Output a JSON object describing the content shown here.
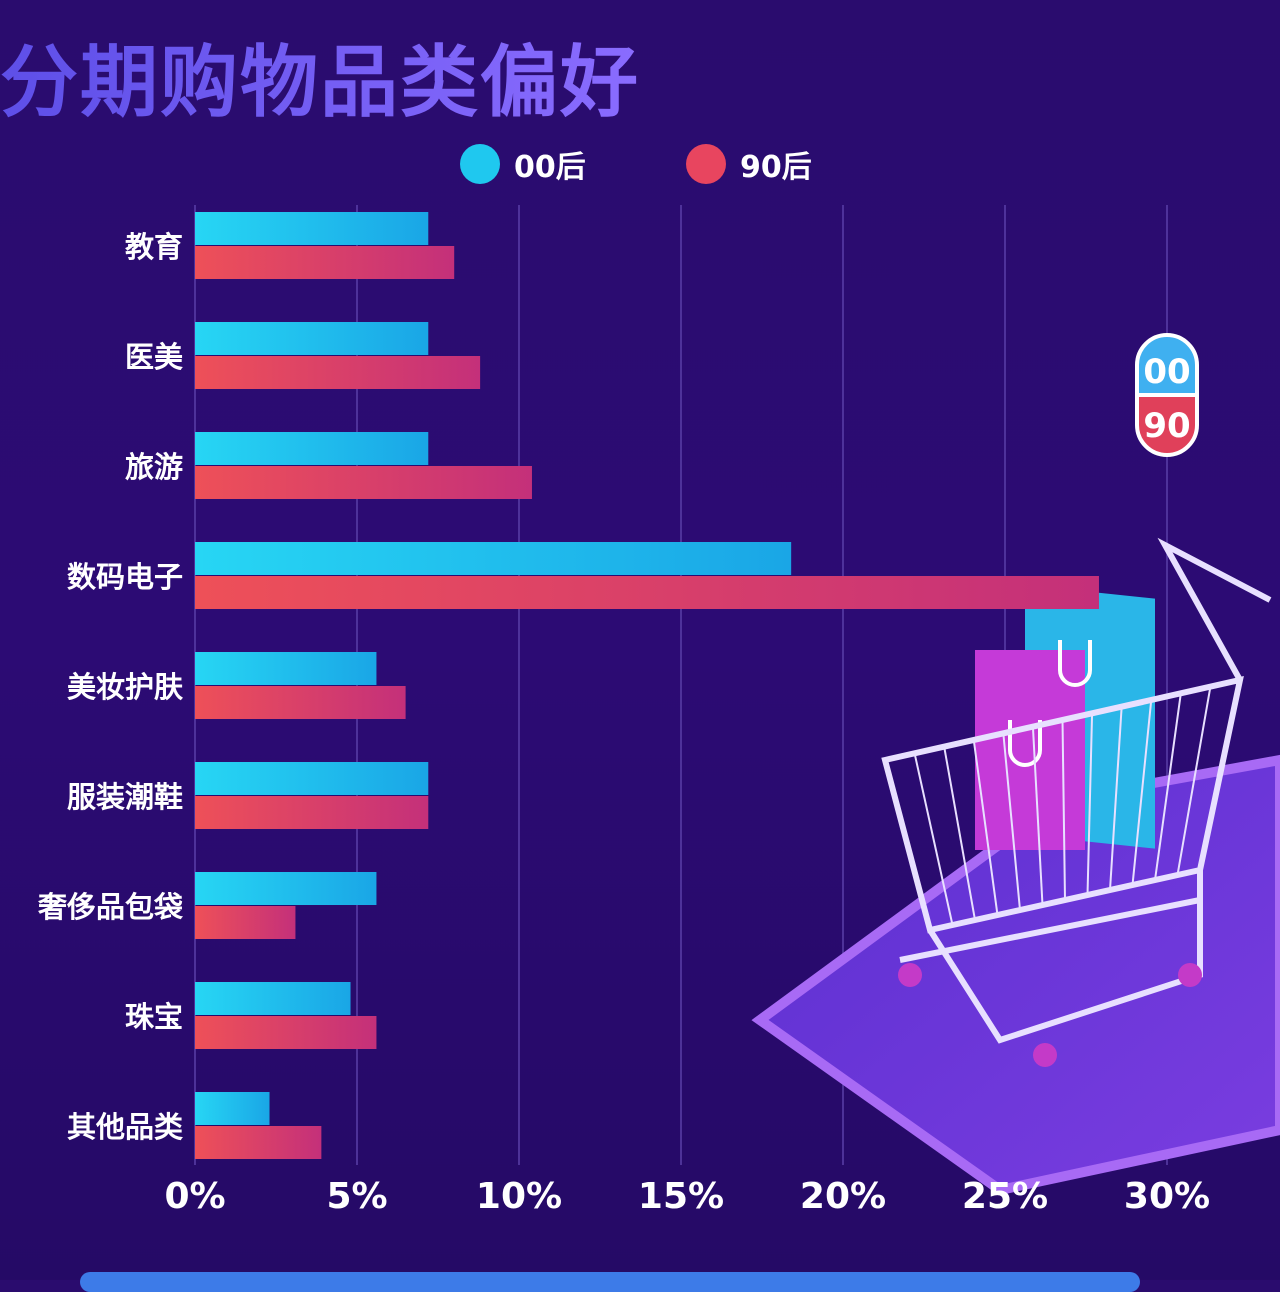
{
  "title": "分期购物品类偏好",
  "colors": {
    "series_00": "#1fc8ef",
    "series_90": "#e8455f",
    "background": "#2a0c6e",
    "title": "#6f5cf2"
  },
  "badge": {
    "top": "00",
    "bottom": "90"
  },
  "chart_data": {
    "type": "bar",
    "orientation": "horizontal",
    "title": "分期购物品类偏好",
    "categories": [
      "教育",
      "医美",
      "旅游",
      "数码电子",
      "美妆护肤",
      "服装潮鞋",
      "奢侈品包袋",
      "珠宝",
      "其他品类"
    ],
    "series": [
      {
        "name": "00后",
        "values": [
          7.2,
          7.2,
          7.2,
          18.4,
          5.6,
          7.2,
          5.6,
          4.8,
          2.3
        ]
      },
      {
        "name": "90后",
        "values": [
          8.0,
          8.8,
          10.4,
          27.9,
          6.5,
          7.2,
          3.1,
          5.6,
          3.9
        ]
      }
    ],
    "xlim": [
      0,
      30
    ],
    "xticks": [
      "0%",
      "5%",
      "10%",
      "15%",
      "20%",
      "25%",
      "30%"
    ],
    "grid": true,
    "legend": "top"
  }
}
